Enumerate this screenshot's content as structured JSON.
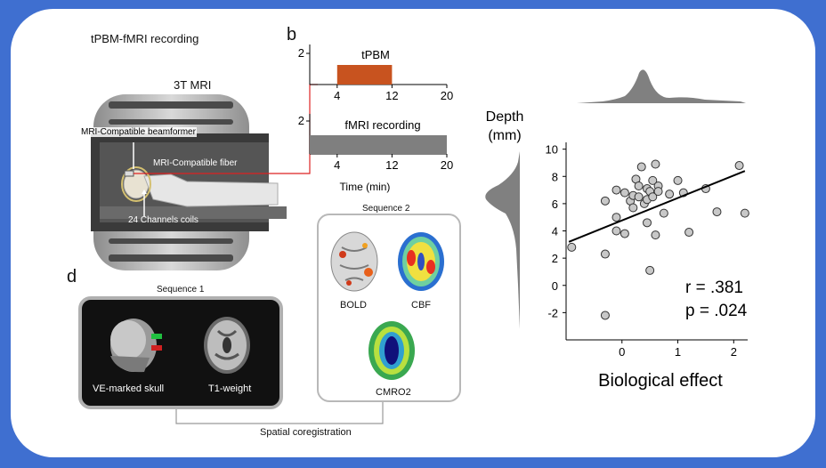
{
  "panel_a": {
    "title": "tPBM-fMRI recording",
    "scanner_label": "3T MRI",
    "beamformer_label": "MRI-Compatible beamformer",
    "fiber_label": "MRI-Compatible fiber",
    "coils_label": "24 Channels coils"
  },
  "panel_b": {
    "letter": "b",
    "tpbm": {
      "title": "tPBM",
      "y_tick": "2",
      "x_ticks": [
        "4",
        "12",
        "20"
      ],
      "on_start": 4,
      "on_end": 12,
      "x_max": 20,
      "color": "#c8531f"
    },
    "fmri": {
      "title": "fMRI recording",
      "y_tick": "2",
      "x_ticks": [
        "4",
        "12",
        "20"
      ],
      "on_start": 0,
      "on_end": 20,
      "x_max": 20,
      "color": "#7f7f7f"
    },
    "x_axis_label": "Time (min)"
  },
  "sequence2": {
    "title": "Sequence 2",
    "maps": [
      "BOLD",
      "CBF",
      "CMRO2"
    ]
  },
  "panel_d": {
    "letter": "d",
    "sequence1_title": "Sequence 1",
    "images": [
      "VE-marked skull",
      "T1-weight"
    ],
    "coregistration_label": "Spatial coregistration"
  },
  "chart_data": {
    "type": "scatter",
    "xlabel": "Biological effect",
    "ylabel": "Depth (mm)",
    "ylabel_lines": [
      "Depth",
      "(mm)"
    ],
    "xlim": [
      -1.0,
      2.25
    ],
    "ylim": [
      -4,
      10.5
    ],
    "x_ticks": [
      0,
      1,
      2
    ],
    "y_ticks": [
      -2,
      0,
      2,
      4,
      6,
      8,
      10
    ],
    "annotation_r": "r = .381",
    "annotation_p": "p = .024",
    "point_color": "#c8c8c8",
    "regression": {
      "x": [
        -0.95,
        2.2
      ],
      "y": [
        3.2,
        8.4
      ]
    },
    "points": [
      {
        "x": -0.9,
        "y": 2.8
      },
      {
        "x": -0.3,
        "y": 2.3
      },
      {
        "x": -0.3,
        "y": -2.2
      },
      {
        "x": -0.3,
        "y": 6.2
      },
      {
        "x": -0.1,
        "y": 4.0
      },
      {
        "x": -0.1,
        "y": 5.0
      },
      {
        "x": -0.1,
        "y": 7.0
      },
      {
        "x": 0.05,
        "y": 3.8
      },
      {
        "x": 0.05,
        "y": 6.8
      },
      {
        "x": 0.15,
        "y": 6.2
      },
      {
        "x": 0.2,
        "y": 5.7
      },
      {
        "x": 0.2,
        "y": 6.6
      },
      {
        "x": 0.25,
        "y": 7.8
      },
      {
        "x": 0.3,
        "y": 6.5
      },
      {
        "x": 0.3,
        "y": 7.3
      },
      {
        "x": 0.35,
        "y": 8.7
      },
      {
        "x": 0.4,
        "y": 6.0
      },
      {
        "x": 0.45,
        "y": 4.6
      },
      {
        "x": 0.45,
        "y": 6.3
      },
      {
        "x": 0.45,
        "y": 7.1
      },
      {
        "x": 0.5,
        "y": 1.1
      },
      {
        "x": 0.5,
        "y": 6.9
      },
      {
        "x": 0.55,
        "y": 6.5
      },
      {
        "x": 0.55,
        "y": 7.7
      },
      {
        "x": 0.6,
        "y": 3.7
      },
      {
        "x": 0.6,
        "y": 8.9
      },
      {
        "x": 0.65,
        "y": 7.3
      },
      {
        "x": 0.65,
        "y": 6.9
      },
      {
        "x": 0.75,
        "y": 5.3
      },
      {
        "x": 0.85,
        "y": 6.7
      },
      {
        "x": 1.0,
        "y": 7.7
      },
      {
        "x": 1.1,
        "y": 6.8
      },
      {
        "x": 1.2,
        "y": 3.9
      },
      {
        "x": 1.5,
        "y": 7.1
      },
      {
        "x": 1.7,
        "y": 5.4
      },
      {
        "x": 2.1,
        "y": 8.8
      },
      {
        "x": 2.2,
        "y": 5.3
      }
    ]
  }
}
